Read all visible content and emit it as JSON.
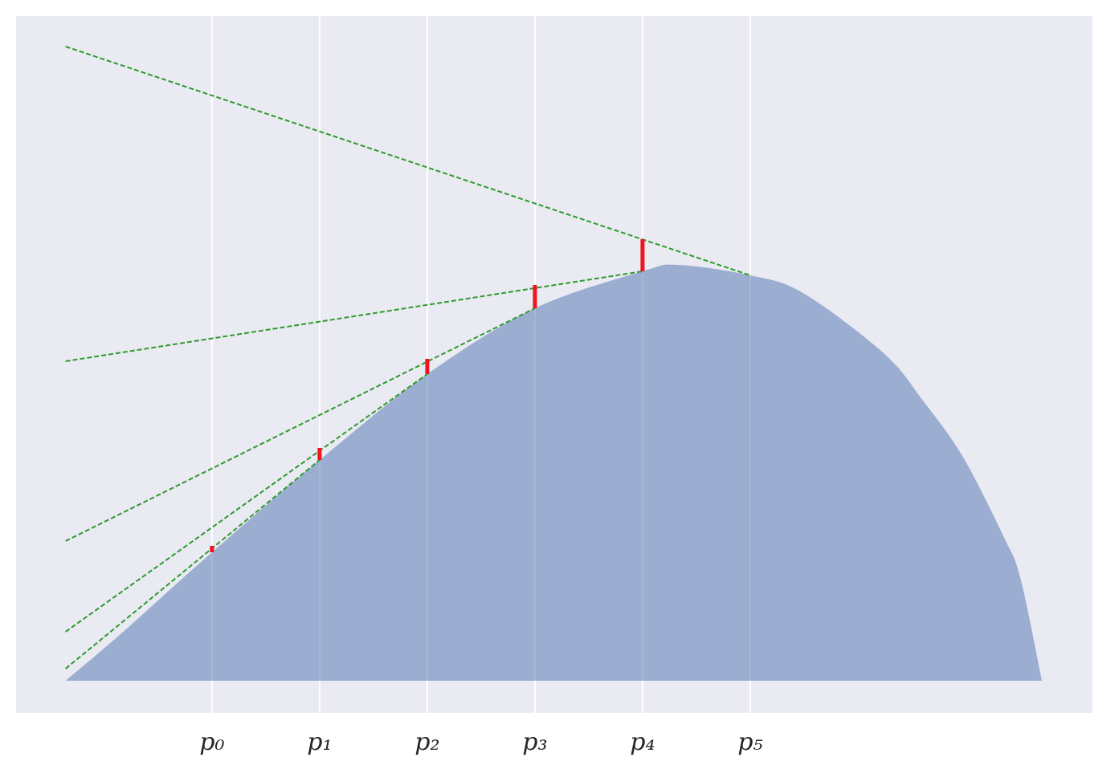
{
  "chart_data": {
    "type": "area",
    "xlim": [
      -0.46,
      9.54
    ],
    "ylim": [
      -0.4,
      8.28
    ],
    "xticks": [
      {
        "value": 1.36,
        "label": "p₀"
      },
      {
        "value": 2.36,
        "label": "p₁"
      },
      {
        "value": 3.36,
        "label": "p₂"
      },
      {
        "value": 4.36,
        "label": "p₃"
      },
      {
        "value": 5.36,
        "label": "p₄"
      },
      {
        "value": 6.36,
        "label": "p₅"
      }
    ],
    "grid": true,
    "background": "#eaeaf2",
    "area": {
      "color": "#4c72b0",
      "x": [
        0,
        0.51,
        1.36,
        2.36,
        3.36,
        4.36,
        5.36,
        5.69,
        6.36,
        6.85,
        7.6,
        7.97,
        8.34,
        8.72,
        8.87,
        9.07
      ],
      "y": [
        0,
        0.58,
        1.6,
        2.75,
        3.82,
        4.64,
        5.1,
        5.18,
        5.05,
        4.83,
        4.08,
        3.48,
        2.78,
        1.78,
        1.28,
        0
      ]
    },
    "tangents": {
      "color": "#2e9a2e",
      "lines": [
        {
          "x": [
            0,
            2.36
          ],
          "y": [
            0.15,
            2.75
          ]
        },
        {
          "x": [
            0,
            3.36
          ],
          "y": [
            0.61,
            3.82
          ]
        },
        {
          "x": [
            0,
            4.36
          ],
          "y": [
            1.74,
            4.64
          ]
        },
        {
          "x": [
            0,
            5.36
          ],
          "y": [
            3.98,
            5.1
          ]
        },
        {
          "x": [
            0,
            6.36
          ],
          "y": [
            7.9,
            5.05
          ]
        }
      ]
    },
    "gaps": {
      "color": "#f0141e",
      "x": [
        1.36,
        2.36,
        3.36,
        4.36,
        5.36
      ],
      "low": [
        1.6,
        2.75,
        3.82,
        4.64,
        5.1
      ],
      "high": [
        1.68,
        2.9,
        4.01,
        4.93,
        5.5
      ]
    }
  }
}
